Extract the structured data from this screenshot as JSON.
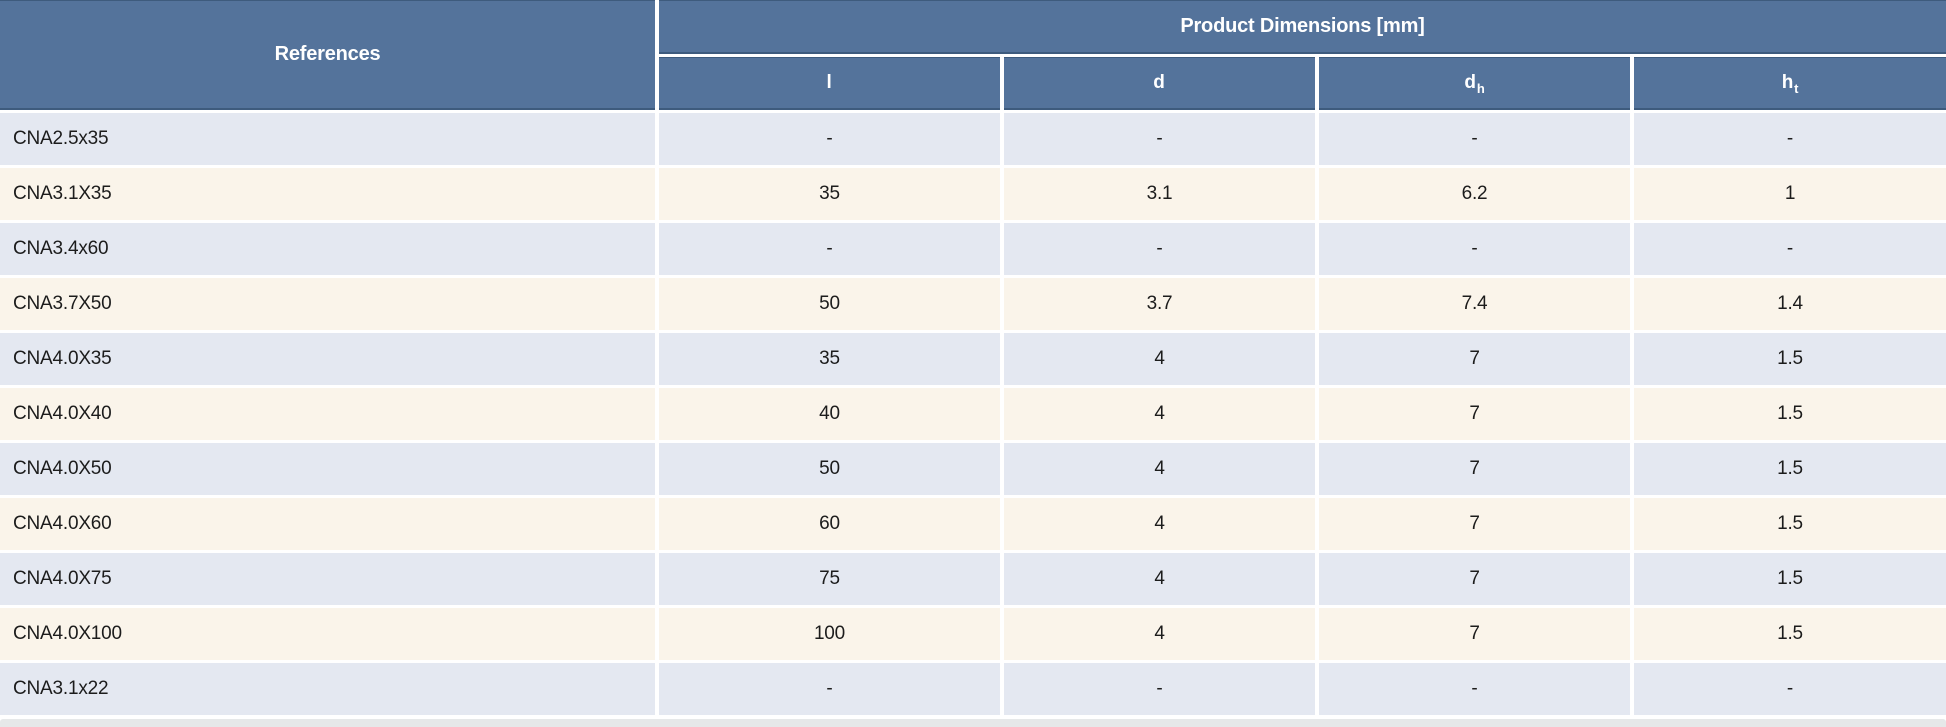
{
  "table": {
    "headers": {
      "references": "References",
      "product_dimensions": "Product Dimensions [mm]",
      "columns": [
        {
          "base": "l",
          "sub": ""
        },
        {
          "base": "d",
          "sub": ""
        },
        {
          "base": "d",
          "sub": "h"
        },
        {
          "base": "h",
          "sub": "t"
        }
      ]
    },
    "rows": [
      {
        "reference": "CNA2.5x35",
        "l": "-",
        "d": "-",
        "dh": "-",
        "ht": "-"
      },
      {
        "reference": "CNA3.1X35",
        "l": "35",
        "d": "3.1",
        "dh": "6.2",
        "ht": "1"
      },
      {
        "reference": "CNA3.4x60",
        "l": "-",
        "d": "-",
        "dh": "-",
        "ht": "-"
      },
      {
        "reference": "CNA3.7X50",
        "l": "50",
        "d": "3.7",
        "dh": "7.4",
        "ht": "1.4"
      },
      {
        "reference": "CNA4.0X35",
        "l": "35",
        "d": "4",
        "dh": "7",
        "ht": "1.5"
      },
      {
        "reference": "CNA4.0X40",
        "l": "40",
        "d": "4",
        "dh": "7",
        "ht": "1.5"
      },
      {
        "reference": "CNA4.0X50",
        "l": "50",
        "d": "4",
        "dh": "7",
        "ht": "1.5"
      },
      {
        "reference": "CNA4.0X60",
        "l": "60",
        "d": "4",
        "dh": "7",
        "ht": "1.5"
      },
      {
        "reference": "CNA4.0X75",
        "l": "75",
        "d": "4",
        "dh": "7",
        "ht": "1.5"
      },
      {
        "reference": "CNA4.0X100",
        "l": "100",
        "d": "4",
        "dh": "7",
        "ht": "1.5"
      },
      {
        "reference": "CNA3.1x22",
        "l": "-",
        "d": "-",
        "dh": "-",
        "ht": "-"
      }
    ]
  },
  "colors": {
    "header_bg": "#54739b",
    "header_border": "#3e5b7d",
    "header_text": "#ffffff",
    "row_even_bg": "#e4e8f1",
    "row_odd_bg": "#faf4ea",
    "cell_text": "#1c1c1c",
    "gap_bg": "#ffffff",
    "partial_band_bg": "#e6e8e9"
  }
}
